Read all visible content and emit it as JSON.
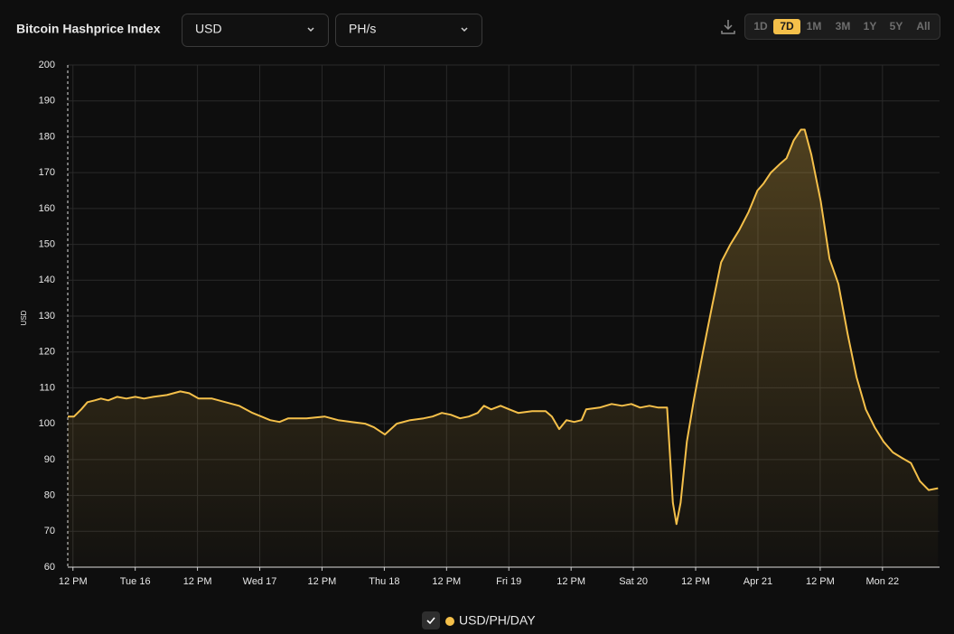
{
  "header": {
    "title": "Bitcoin Hashprice Index",
    "currency": "USD",
    "unit": "PH/s",
    "ranges": [
      "1D",
      "7D",
      "1M",
      "3M",
      "1Y",
      "5Y",
      "All"
    ],
    "active_range": "7D"
  },
  "chart_data": {
    "type": "area",
    "ylabel": "USD",
    "x": [
      -1.0,
      0.2,
      1.6,
      2.8,
      4.2,
      5.4,
      6.8,
      8.5,
      10.3,
      12.0,
      13.7,
      15.5,
      18.1,
      20.7,
      22.4,
      24.2,
      26.8,
      29.4,
      32.0,
      34.6,
      36.3,
      38.0,
      39.8,
      41.5,
      45.0,
      48.5,
      51.1,
      53.7,
      56.3,
      58.0,
      60.1,
      62.4,
      65.0,
      67.6,
      69.3,
      71.1,
      72.8,
      74.6,
      76.3,
      78.0,
      79.2,
      80.6,
      82.4,
      84.1,
      85.8,
      88.5,
      91.1,
      92.3,
      93.7,
      95.1,
      96.6,
      98.0,
      98.9,
      101.5,
      103.8,
      105.8,
      107.6,
      109.3,
      111.1,
      112.8,
      114.5,
      114.9,
      115.6,
      116.3,
      117.1,
      118.3,
      119.7,
      121.4,
      123.2,
      124.9,
      126.7,
      128.4,
      130.2,
      131.9,
      133.1,
      134.5,
      136.3,
      137.5,
      138.9,
      140.3,
      141.0,
      142.3,
      144.1,
      145.8,
      147.5,
      149.3,
      151.0,
      152.8,
      154.5,
      156.2,
      158.0,
      159.7,
      161.5,
      163.2,
      164.9,
      166.7
    ],
    "series": [
      {
        "name": "USD/PH/DAY",
        "color": "#f5c04a",
        "values": [
          102,
          102,
          104,
          106,
          106.5,
          107,
          106.5,
          107.5,
          107,
          107.5,
          107,
          107.5,
          108,
          109,
          108.5,
          107,
          107,
          106,
          105,
          103,
          102,
          101,
          100.5,
          101.5,
          101.5,
          102,
          101,
          100.5,
          100,
          99,
          97,
          100,
          101,
          101.5,
          102,
          103,
          102.5,
          101.5,
          102,
          103,
          105,
          104,
          105,
          104,
          103,
          103.5,
          103.5,
          102,
          98.5,
          101,
          100.5,
          101,
          104,
          104.5,
          105.5,
          105,
          105.5,
          104.5,
          105,
          104.5,
          104.5,
          95,
          78,
          72,
          78,
          95,
          107,
          120,
          133,
          145,
          150,
          154,
          159,
          165,
          167,
          170,
          172.5,
          174,
          179,
          182,
          182,
          175,
          162,
          146,
          139,
          125,
          113,
          104,
          99,
          95,
          92,
          90.5,
          89,
          84,
          81.5,
          82
        ]
      }
    ],
    "xlim": [
      -1,
      167
    ],
    "xticks": [
      {
        "value": 0,
        "label": "12 PM"
      },
      {
        "value": 12,
        "label": "Tue 16"
      },
      {
        "value": 24,
        "label": "12 PM"
      },
      {
        "value": 36,
        "label": "Wed 17"
      },
      {
        "value": 48,
        "label": "12 PM"
      },
      {
        "value": 60,
        "label": "Thu 18"
      },
      {
        "value": 72,
        "label": "12 PM"
      },
      {
        "value": 84,
        "label": "Fri 19"
      },
      {
        "value": 96,
        "label": "12 PM"
      },
      {
        "value": 108,
        "label": "Sat 20"
      },
      {
        "value": 120,
        "label": "12 PM"
      },
      {
        "value": 132,
        "label": "Apr 21"
      },
      {
        "value": 144,
        "label": "12 PM"
      },
      {
        "value": 156,
        "label": "Mon 22"
      }
    ],
    "ylim": [
      60,
      200
    ],
    "yticks": [
      60,
      70,
      80,
      90,
      100,
      110,
      120,
      130,
      140,
      150,
      160,
      170,
      180,
      190,
      200
    ],
    "grid": true
  }
}
